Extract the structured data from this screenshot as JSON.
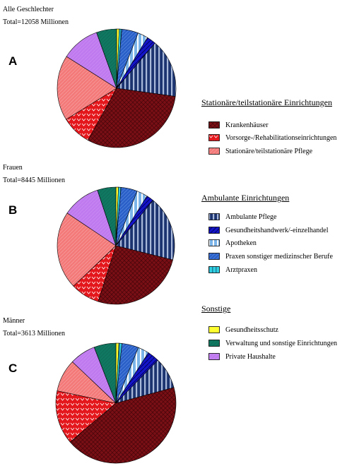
{
  "categories": [
    {
      "key": "kh",
      "label": "Krankenhäuser",
      "color": "#7a1016",
      "pattern": "pat-kh"
    },
    {
      "key": "vr",
      "label": "Vorsorge-/Rehabilitationseinrichtungen",
      "color": "#e4181c",
      "pattern": "pat-vr"
    },
    {
      "key": "sp",
      "label": "Stationäre/teilstationäre Pflege",
      "color": "#f47a7a",
      "pattern": "pat-sp"
    },
    {
      "key": "ap",
      "label": "Ambulante Pflege",
      "color": "#1c3470",
      "pattern": "pat-ap"
    },
    {
      "key": "gh",
      "label": "Gesundheitshandwerk/-einzelhandel",
      "color": "#1414c8",
      "pattern": "pat-gh"
    },
    {
      "key": "apo",
      "label": "Apotheken",
      "color": "#7ab4e8",
      "pattern": "pat-apo"
    },
    {
      "key": "pm",
      "label": "Praxen sonstiger medizinscher Berufe",
      "color": "#2a60c8",
      "pattern": "pat-pm"
    },
    {
      "key": "az",
      "label": "Arztpraxen",
      "color": "#30d0e0",
      "pattern": "pat-az"
    },
    {
      "key": "gs",
      "label": "Gesundheitsschutz",
      "color": "#ffff30",
      "pattern": "pat-gs"
    },
    {
      "key": "vw",
      "label": "Verwaltung und sonstige Einrichtungen",
      "color": "#107860",
      "pattern": "pat-vw"
    },
    {
      "key": "ph",
      "label": "Private Haushalte",
      "color": "#c07af0",
      "pattern": "pat-ph"
    }
  ],
  "legend": {
    "groups": [
      {
        "title": "Stationäre/teilstationäre Einrichtungen",
        "items": [
          "kh",
          "vr",
          "sp"
        ]
      },
      {
        "title": "Ambulante Einrichtungen",
        "items": [
          "ap",
          "gh",
          "apo",
          "pm",
          "az"
        ]
      },
      {
        "title": "Sonstige",
        "items": [
          "gs",
          "vw",
          "ph"
        ]
      }
    ]
  },
  "panels": [
    {
      "letter": "A",
      "caption": "Alle Geschlechter",
      "total": "Total=12058 Millionen"
    },
    {
      "letter": "B",
      "caption": "Frauen",
      "total": "Total=8445 Millionen"
    },
    {
      "letter": "C",
      "caption": "Männer",
      "total": "Total=3613 Millionen"
    }
  ],
  "chart_data": [
    {
      "type": "pie",
      "title": "Alle Geschlechter",
      "subtitle": "Total=12058 Millionen",
      "order": "clockwise from 12 o'clock",
      "categories": [
        "Gesundheitsschutz",
        "Arztpraxen",
        "Praxen sonstiger medizinscher Berufe",
        "Apotheken",
        "Gesundheitshandwerk/-einzelhandel",
        "Ambulante Pflege",
        "Krankenhäuser",
        "Vorsorge-/Rehabilitationseinrichtungen",
        "Stationäre/teilstationäre Pflege",
        "Private Haushalte",
        "Verwaltung und sonstige Einrichtungen"
      ],
      "keys": [
        "gs",
        "az",
        "pm",
        "apo",
        "gh",
        "ap",
        "kh",
        "vr",
        "sp",
        "ph",
        "vw"
      ],
      "values": [
        0.7,
        0.7,
        4.5,
        2.8,
        2.5,
        16.0,
        30.8,
        8.2,
        17.8,
        10.5,
        5.5
      ]
    },
    {
      "type": "pie",
      "title": "Frauen",
      "subtitle": "Total=8445 Millionen",
      "order": "clockwise from 12 o'clock",
      "categories": [
        "Gesundheitsschutz",
        "Arztpraxen",
        "Praxen sonstiger medizinscher Berufe",
        "Apotheken",
        "Gesundheitshandwerk/-einzelhandel",
        "Ambulante Pflege",
        "Krankenhäuser",
        "Vorsorge-/Rehabilitationseinrichtungen",
        "Stationäre/teilstationäre Pflege",
        "Private Haushalte",
        "Verwaltung und sonstige Einrichtungen"
      ],
      "keys": [
        "gs",
        "az",
        "pm",
        "apo",
        "gh",
        "ap",
        "kh",
        "vr",
        "sp",
        "ph",
        "vw"
      ],
      "values": [
        0.7,
        0.7,
        4.5,
        3.0,
        2.0,
        18.0,
        26.0,
        8.0,
        21.5,
        10.5,
        5.1
      ]
    },
    {
      "type": "pie",
      "title": "Männer",
      "subtitle": "Total=3613 Millionen",
      "order": "clockwise from 12 o'clock",
      "categories": [
        "Gesundheitsschutz",
        "Arztpraxen",
        "Praxen sonstiger medizinscher Berufe",
        "Apotheken",
        "Gesundheitshandwerk/-einzelhandel",
        "Ambulante Pflege",
        "Krankenhäuser",
        "Vorsorge-/Rehabilitationseinrichtungen",
        "Stationäre/teilstationäre Pflege",
        "Private Haushalte",
        "Verwaltung und sonstige Einrichtungen"
      ],
      "keys": [
        "gs",
        "az",
        "pm",
        "apo",
        "gh",
        "ap",
        "kh",
        "vr",
        "sp",
        "ph",
        "vw"
      ],
      "values": [
        0.8,
        0.8,
        4.5,
        3.0,
        3.2,
        8.5,
        43.0,
        14.5,
        8.8,
        7.0,
        5.9
      ]
    }
  ]
}
